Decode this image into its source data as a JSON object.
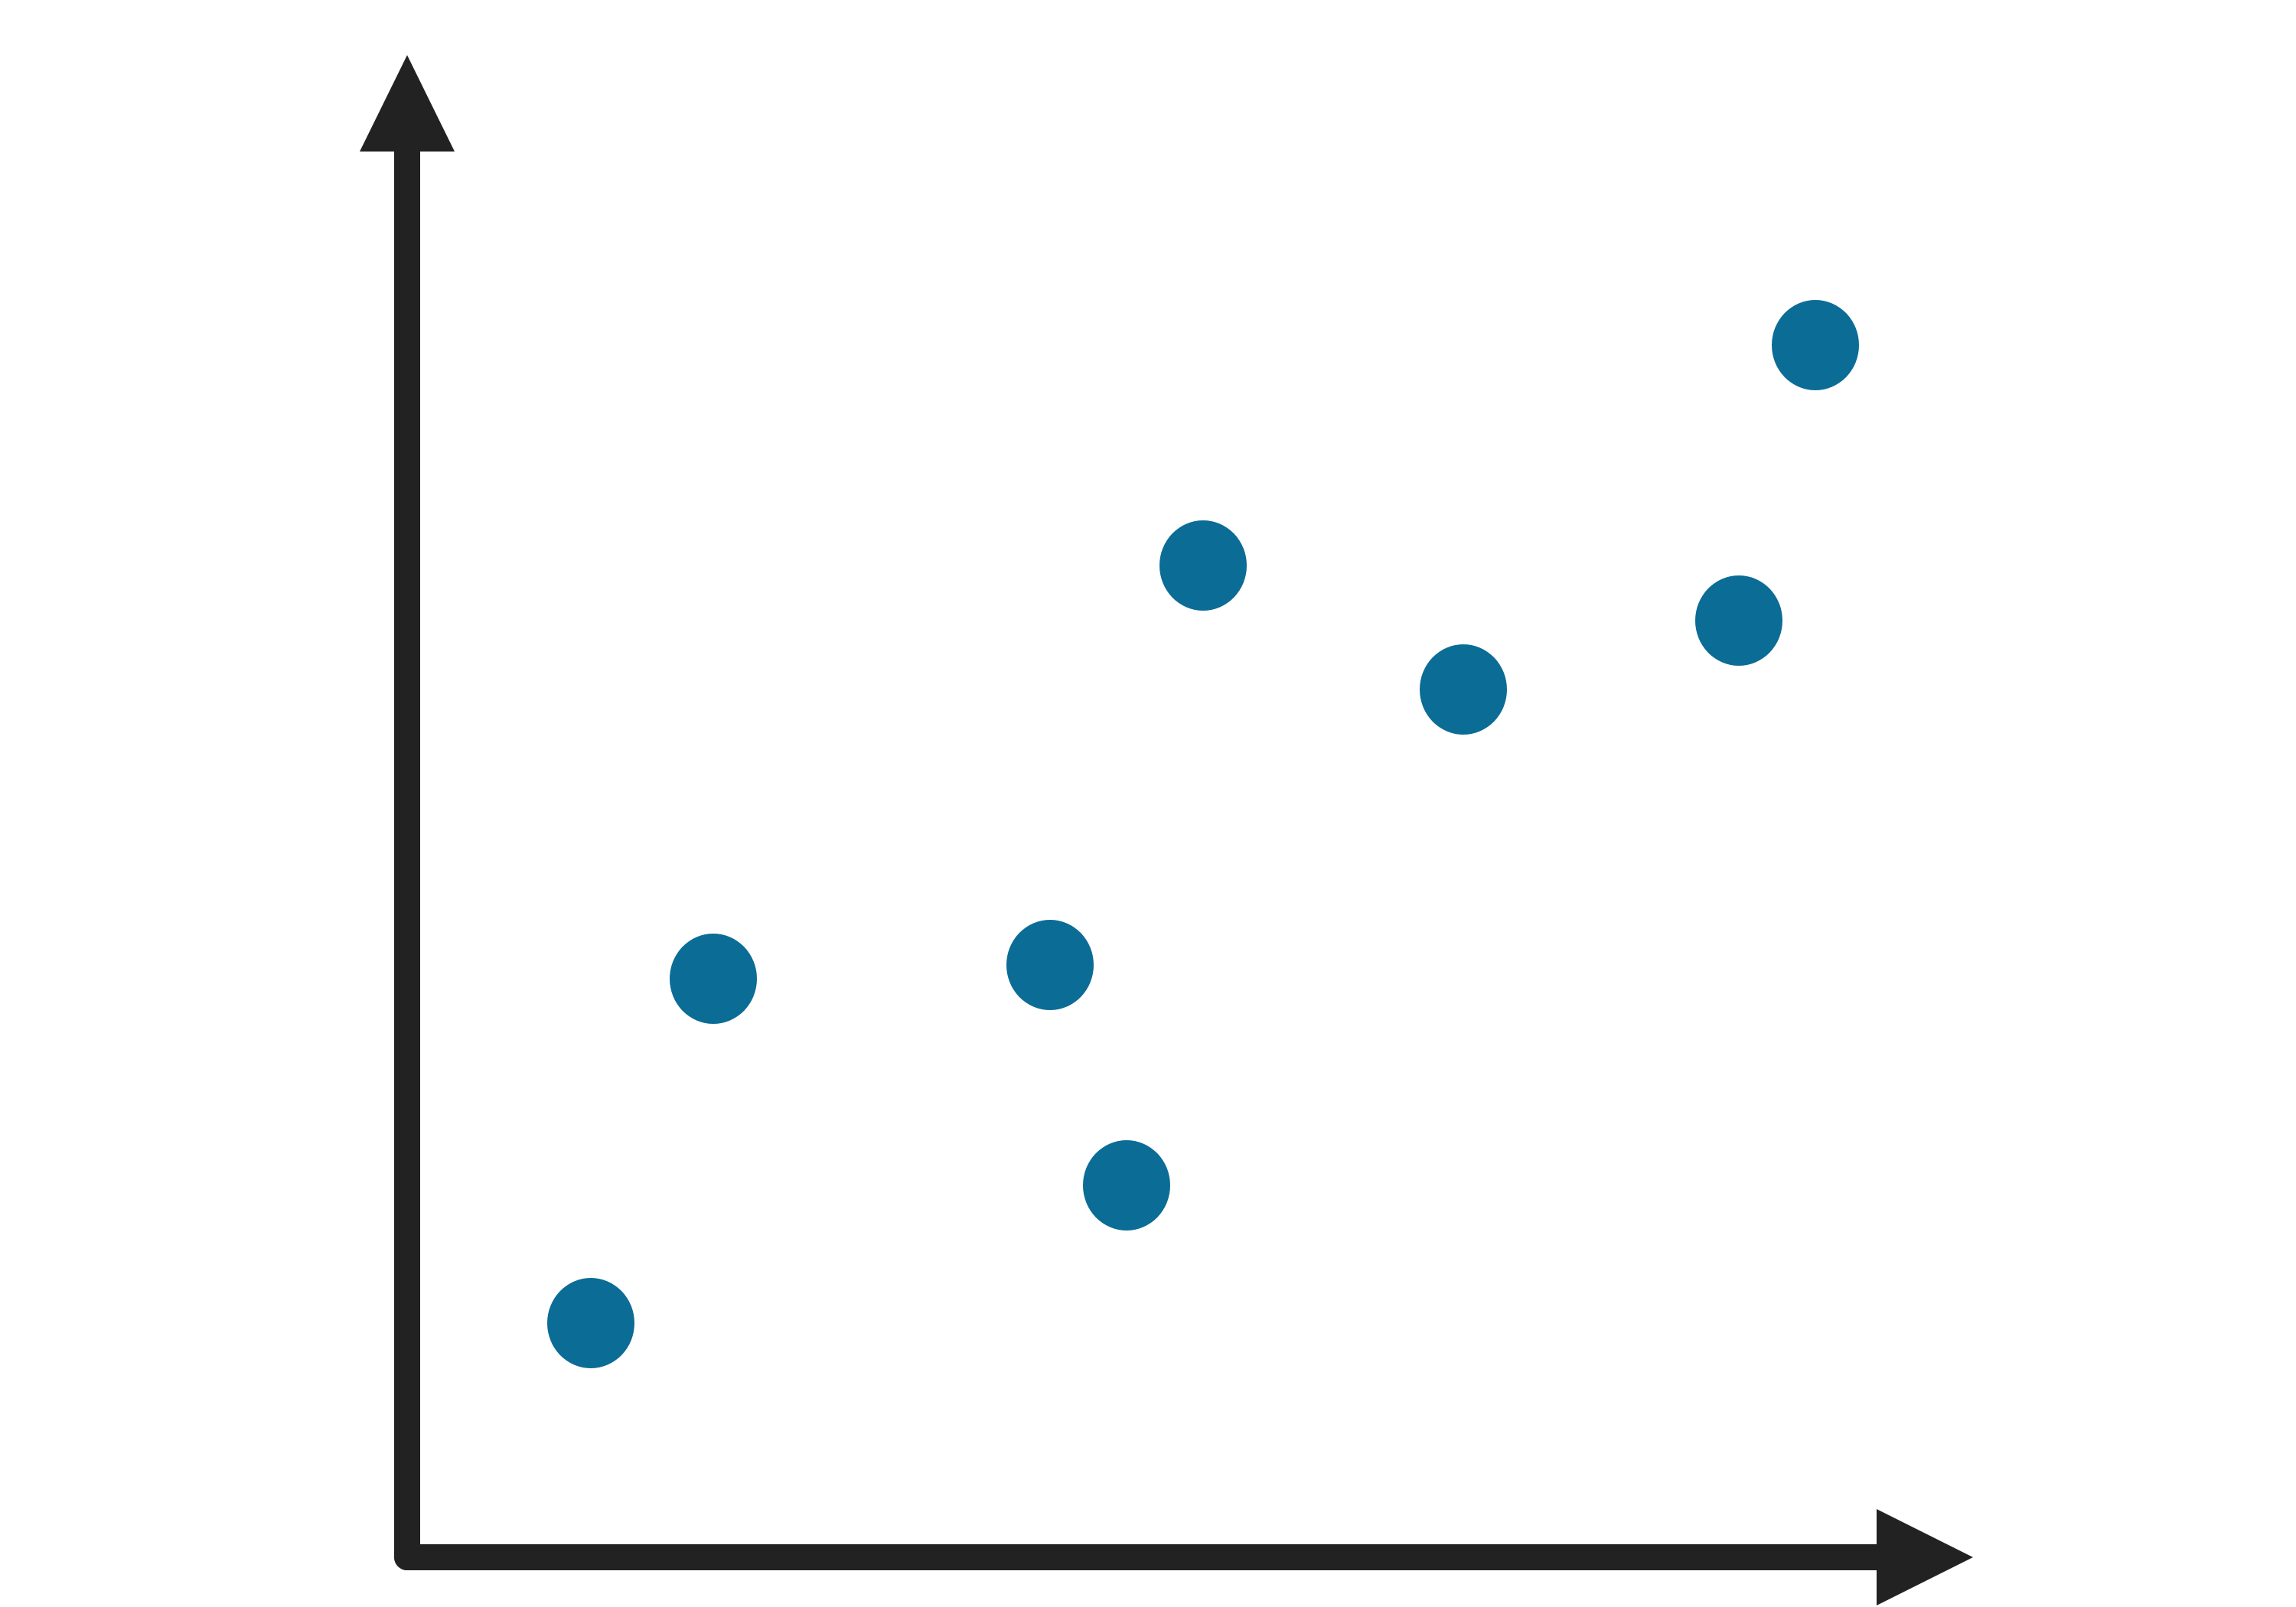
{
  "chart_data": {
    "type": "scatter",
    "title": "",
    "xlabel": "",
    "ylabel": "",
    "grid": false,
    "xlim": [
      0,
      10
    ],
    "ylim": [
      0,
      10
    ],
    "series": [
      {
        "points": [
          {
            "x": 1.2,
            "y": 1.7
          },
          {
            "x": 2.0,
            "y": 4.2
          },
          {
            "x": 4.2,
            "y": 4.3
          },
          {
            "x": 4.7,
            "y": 2.7
          },
          {
            "x": 5.2,
            "y": 7.2
          },
          {
            "x": 6.9,
            "y": 6.3
          },
          {
            "x": 8.7,
            "y": 6.8
          },
          {
            "x": 9.2,
            "y": 8.8
          }
        ]
      }
    ],
    "colors": {
      "marker": "#0b6c96",
      "axis": "#222222"
    }
  }
}
